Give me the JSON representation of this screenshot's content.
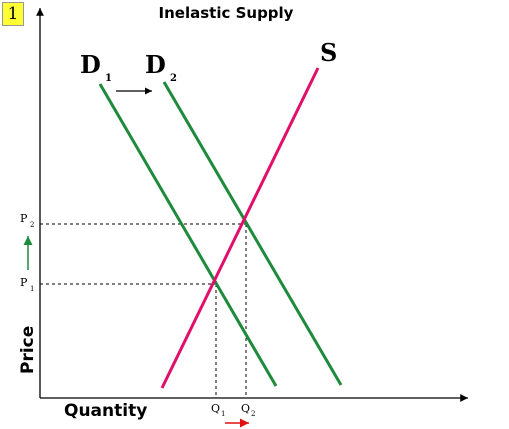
{
  "badge": "1",
  "title": "Inelastic Supply",
  "axes": {
    "x_label": "Quantity",
    "y_label": "Price"
  },
  "curves": {
    "demand1": {
      "letter": "D",
      "sub": "1"
    },
    "demand2": {
      "letter": "D",
      "sub": "2"
    },
    "supply": {
      "letter": "S"
    }
  },
  "price_labels": {
    "p1": {
      "letter": "P",
      "sub": "1"
    },
    "p2": {
      "letter": "P",
      "sub": "2"
    }
  },
  "quantity_labels": {
    "q1": {
      "letter": "Q",
      "sub": "1"
    },
    "q2": {
      "letter": "Q",
      "sub": "2"
    }
  },
  "colors": {
    "demand": "#1e8a3c",
    "supply": "#e0106a",
    "shift_arrow_price": "#1e8a3c",
    "shift_arrow_quantity": "#e01010",
    "axis": "#000000"
  }
}
